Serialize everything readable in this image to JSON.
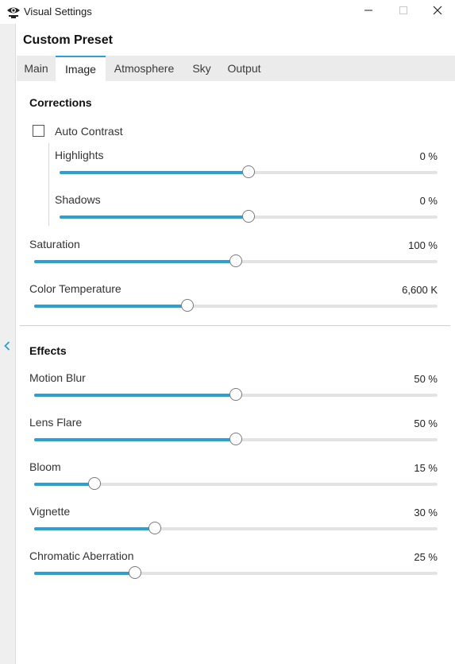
{
  "window": {
    "title": "Visual Settings"
  },
  "preset_title": "Custom Preset",
  "tabs": [
    {
      "label": "Main"
    },
    {
      "label": "Image"
    },
    {
      "label": "Atmosphere"
    },
    {
      "label": "Sky"
    },
    {
      "label": "Output"
    }
  ],
  "active_tab": "Image",
  "corrections": {
    "title": "Corrections",
    "auto_contrast": {
      "label": "Auto Contrast",
      "checked": false
    },
    "highlights": {
      "label": "Highlights",
      "value": "0 %",
      "level": 0.5
    },
    "shadows": {
      "label": "Shadows",
      "value": "0 %",
      "level": 0.5
    },
    "saturation": {
      "label": "Saturation",
      "value": "100 %",
      "level": 0.5
    },
    "color_temperature": {
      "label": "Color Temperature",
      "value": "6,600 K",
      "level": 0.38
    }
  },
  "effects": {
    "title": "Effects",
    "motion_blur": {
      "label": "Motion Blur",
      "value": "50 %",
      "level": 0.5
    },
    "lens_flare": {
      "label": "Lens Flare",
      "value": "50 %",
      "level": 0.5
    },
    "bloom": {
      "label": "Bloom",
      "value": "15 %",
      "level": 0.15
    },
    "vignette": {
      "label": "Vignette",
      "value": "30 %",
      "level": 0.3
    },
    "chromatic_aberration": {
      "label": "Chromatic Aberration",
      "value": "25 %",
      "level": 0.25
    }
  },
  "icons": {
    "app": "eye-gear-icon",
    "minimize": "minimize-icon",
    "maximize": "maximize-icon",
    "close": "close-icon",
    "collapse": "chevron-left-icon"
  },
  "colors": {
    "accent": "#2a9fd8",
    "track": "#e3e3e3",
    "tabbar": "#ebebeb"
  }
}
